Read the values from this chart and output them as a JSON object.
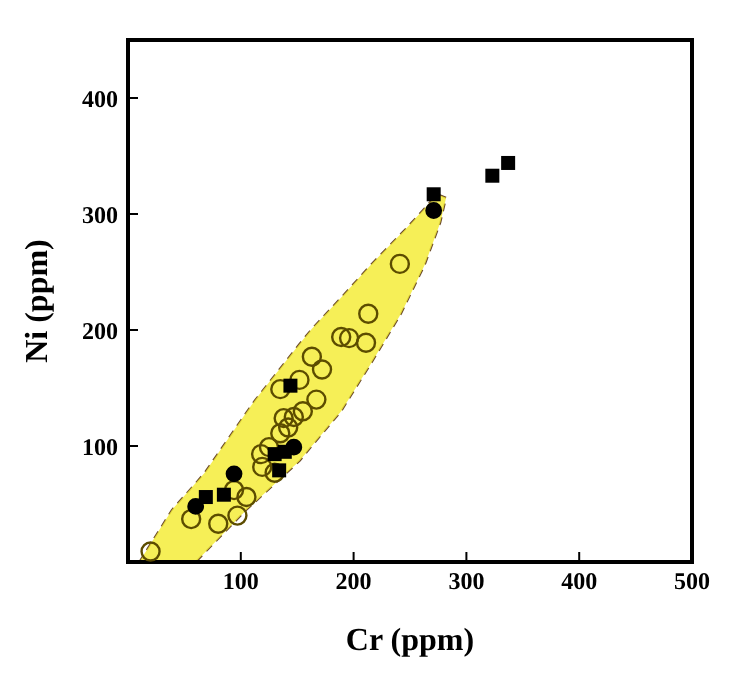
{
  "chart_data": {
    "type": "scatter",
    "xlabel": "Cr (ppm)",
    "ylabel": "Ni (ppm)",
    "xlim": [
      0,
      500
    ],
    "ylim": [
      0,
      450
    ],
    "xticks": [
      100,
      200,
      300,
      400,
      500
    ],
    "yticks": [
      100,
      200,
      300,
      400
    ],
    "grid": false,
    "legend": false,
    "series": [
      {
        "type": "area",
        "color": "#f5ec3a",
        "line_style": "dashed",
        "x": [
          10,
          39,
          60,
          68,
          105,
          113,
          152,
          163,
          189,
          216,
          242,
          247,
          263,
          274,
          277,
          282
        ],
        "values": [
          null,
          null,
          null,
          null,
          null,
          null,
          null,
          null,
          null,
          null,
          null,
          null,
          null,
          null,
          null,
          null
        ],
        "lower": [
          0,
          0,
          0,
          8,
          45,
          52,
          87,
          100,
          130,
          172,
          214,
          224,
          256,
          285,
          293,
          314
        ],
        "upper": [
          0,
          45,
          68,
          77,
          129,
          140,
          188,
          201,
          228,
          257,
          283,
          288,
          305,
          317,
          316,
          314
        ]
      },
      {
        "color": "#5c4c00",
        "marker": "circle",
        "x": [
          20,
          56,
          80,
          97,
          105,
          94,
          118,
          119,
          125,
          135,
          138,
          142,
          147,
          155,
          167,
          152,
          135,
          163,
          172,
          189,
          196,
          211,
          213,
          241,
          130
        ],
        "values": [
          9,
          37,
          33,
          40,
          56,
          62,
          93,
          82,
          99,
          111,
          124,
          116,
          125,
          130,
          140,
          157,
          149,
          177,
          166,
          194,
          193,
          189,
          214,
          257,
          77
        ]
      },
      {
        "color": "#000000",
        "marker": "square",
        "x": [
          271,
          323,
          337,
          69,
          85,
          144,
          134,
          130,
          139
        ],
        "values": [
          317,
          333,
          344,
          56,
          58,
          152,
          79,
          93,
          95
        ]
      },
      {
        "color": "#000000",
        "marker": "circle",
        "x": [
          271,
          60,
          94,
          147
        ],
        "values": [
          303,
          48,
          76,
          99
        ]
      }
    ]
  }
}
